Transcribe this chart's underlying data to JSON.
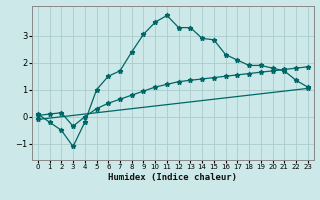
{
  "xlabel": "Humidex (Indice chaleur)",
  "ylabel": "",
  "background_color": "#cce8e8",
  "grid_color": "#aacccc",
  "line_color": "#006666",
  "xlim": [
    -0.5,
    23.5
  ],
  "ylim": [
    -1.6,
    4.1
  ],
  "yticks": [
    -1,
    0,
    1,
    2,
    3
  ],
  "xticks": [
    0,
    1,
    2,
    3,
    4,
    5,
    6,
    7,
    8,
    9,
    10,
    11,
    12,
    13,
    14,
    15,
    16,
    17,
    18,
    19,
    20,
    21,
    22,
    23
  ],
  "line1_x": [
    0,
    1,
    2,
    3,
    4,
    5,
    6,
    7,
    8,
    9,
    10,
    11,
    12,
    13,
    14,
    15,
    16,
    17,
    18,
    19,
    20,
    21,
    22,
    23
  ],
  "line1_y": [
    0.1,
    -0.2,
    -0.5,
    -1.1,
    -0.2,
    1.0,
    1.5,
    1.7,
    2.4,
    3.05,
    3.5,
    3.75,
    3.3,
    3.3,
    2.9,
    2.85,
    2.3,
    2.1,
    1.9,
    1.9,
    1.8,
    1.7,
    1.35,
    1.1
  ],
  "line2_x": [
    0,
    1,
    2,
    3,
    4,
    5,
    6,
    7,
    8,
    9,
    10,
    11,
    12,
    13,
    14,
    15,
    16,
    17,
    18,
    19,
    20,
    21,
    22,
    23
  ],
  "line2_y": [
    0.05,
    0.1,
    0.15,
    -0.35,
    0.0,
    0.3,
    0.5,
    0.65,
    0.8,
    0.95,
    1.1,
    1.2,
    1.3,
    1.35,
    1.4,
    1.45,
    1.5,
    1.55,
    1.6,
    1.65,
    1.7,
    1.75,
    1.8,
    1.85
  ],
  "line3_x": [
    0,
    23
  ],
  "line3_y": [
    -0.1,
    1.05
  ],
  "figsize": [
    3.2,
    2.0
  ],
  "dpi": 100
}
